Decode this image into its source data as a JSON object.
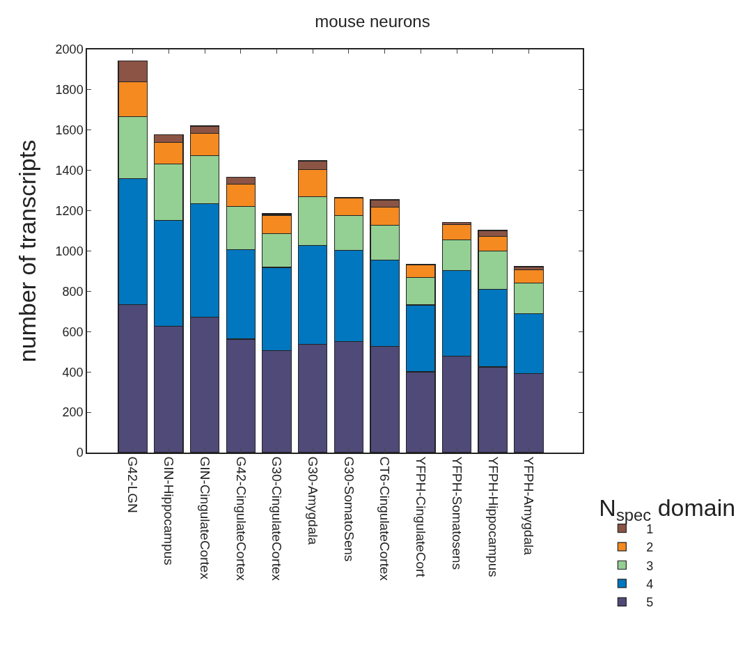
{
  "chart_data": {
    "type": "bar",
    "stacked": true,
    "title": "mouse neurons",
    "ylabel": "number of transcripts",
    "legend_title": "N$_{spec}$ domain",
    "categories": [
      "G42-LGN",
      "GIN-Hippocampus",
      "GIN-CingulateCortex",
      "G42-CingulateCortex",
      "G30-CingulateCortex",
      "G30-Amygdala",
      "G30-SomatoSens",
      "CT6-CingulateCortex",
      "YFPH-CingulateCort",
      "YFPH-Somatosens",
      "YFPH-Hippocampus",
      "YFPH-Amygdala"
    ],
    "series": [
      {
        "name": "5",
        "color": "#4f4a78",
        "values": [
          733,
          628,
          673,
          563,
          507,
          537,
          551,
          527,
          401,
          478,
          425,
          391
        ]
      },
      {
        "name": "4",
        "color": "#0077bf",
        "values": [
          627,
          524,
          562,
          443,
          412,
          491,
          452,
          428,
          331,
          424,
          386,
          298
        ]
      },
      {
        "name": "3",
        "color": "#94cf93",
        "values": [
          308,
          280,
          239,
          214,
          166,
          242,
          174,
          172,
          136,
          152,
          190,
          153
        ]
      },
      {
        "name": "2",
        "color": "#f58a20",
        "values": [
          172,
          108,
          110,
          112,
          93,
          135,
          85,
          90,
          64,
          76,
          72,
          64
        ]
      },
      {
        "name": "1",
        "color": "#8b5444",
        "values": [
          102,
          38,
          36,
          35,
          7,
          42,
          3,
          37,
          3,
          13,
          29,
          16
        ]
      }
    ],
    "ylim": [
      0,
      2000
    ],
    "yticks": [
      0,
      200,
      400,
      600,
      800,
      1000,
      1200,
      1400,
      1600,
      1800,
      2000
    ],
    "grid": false,
    "legend": "bottom right"
  }
}
